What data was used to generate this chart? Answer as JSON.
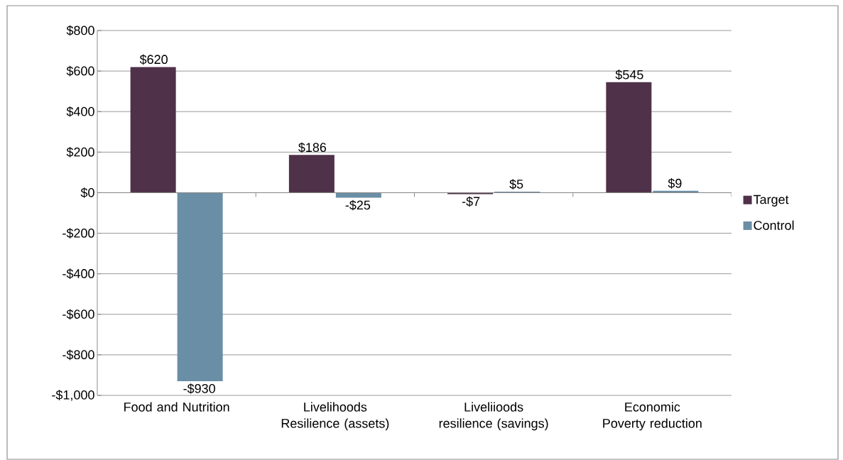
{
  "chart_data": {
    "type": "bar",
    "categories": [
      "Food and Nutrition",
      "Livelihoods Resilience (assets)",
      "Liveliioods resilience (savings)",
      "Economic Poverty reduction"
    ],
    "series": [
      {
        "name": "Target",
        "color": "#4f3149",
        "values": [
          620,
          186,
          -7,
          545
        ],
        "value_labels": [
          "$620",
          "$186",
          "-$7",
          "$545"
        ]
      },
      {
        "name": "Control",
        "color": "#6a8ea6",
        "values": [
          -930,
          -25,
          5,
          9
        ],
        "value_labels": [
          "-$930",
          "-$25",
          "$5",
          "$9"
        ]
      }
    ],
    "ylim": [
      -1000,
      800
    ],
    "yticks": [
      {
        "value": -1000,
        "label": "-$1,000"
      },
      {
        "value": -800,
        "label": "-$800"
      },
      {
        "value": -600,
        "label": "-$600"
      },
      {
        "value": -400,
        "label": "-$400"
      },
      {
        "value": -200,
        "label": "-$200"
      },
      {
        "value": 0,
        "label": "$0"
      },
      {
        "value": 200,
        "label": "$200"
      },
      {
        "value": 400,
        "label": "$400"
      },
      {
        "value": 600,
        "label": "$600"
      },
      {
        "value": 800,
        "label": "$800"
      }
    ],
    "grid": "y",
    "legend": "right"
  }
}
